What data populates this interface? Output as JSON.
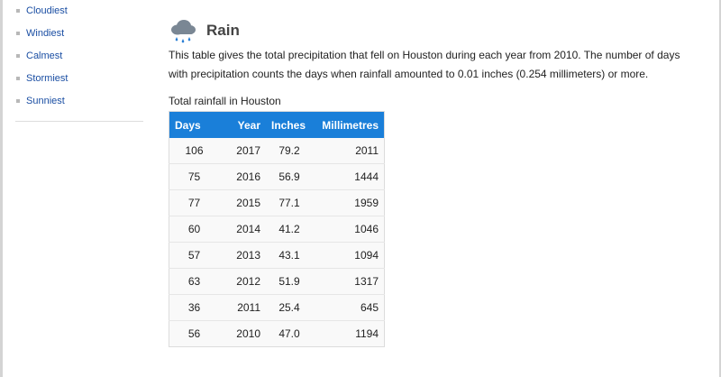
{
  "sidebar": {
    "items": [
      {
        "label": "Cloudiest"
      },
      {
        "label": "Windiest"
      },
      {
        "label": "Calmest"
      },
      {
        "label": "Stormiest"
      },
      {
        "label": "Sunniest"
      }
    ]
  },
  "section": {
    "icon": "rain-cloud-icon",
    "title": "Rain",
    "description": "This table gives the total precipitation that fell on Houston during each year from 2010. The number of days with precipitation counts the days when rainfall amounted to 0.01 inches (0.254 millimeters) or more."
  },
  "table": {
    "caption": "Total rainfall in Houston",
    "columns": [
      "Days",
      "Year",
      "Inches",
      "Millimetres"
    ],
    "rows": [
      [
        "106",
        "2017",
        "79.2",
        "2011"
      ],
      [
        "75",
        "2016",
        "56.9",
        "1444"
      ],
      [
        "77",
        "2015",
        "77.1",
        "1959"
      ],
      [
        "60",
        "2014",
        "41.2",
        "1046"
      ],
      [
        "57",
        "2013",
        "43.1",
        "1094"
      ],
      [
        "63",
        "2012",
        "51.9",
        "1317"
      ],
      [
        "36",
        "2011",
        "25.4",
        "645"
      ],
      [
        "56",
        "2010",
        "47.0",
        "1194"
      ]
    ]
  },
  "colors": {
    "header_bg": "#1a7fd9",
    "link": "#1a4ea3",
    "heading": "#444444",
    "cloud": "#7a8794",
    "raindrop": "#2a7fd4"
  }
}
